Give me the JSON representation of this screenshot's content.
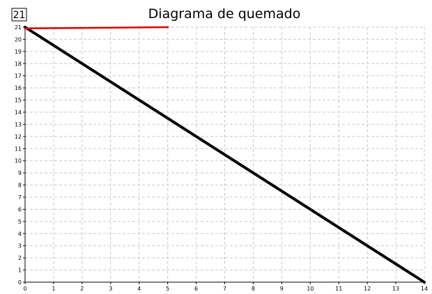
{
  "chart_data": {
    "type": "line",
    "title": "Diagrama de quemado",
    "badge": "21",
    "xlabel": "",
    "ylabel": "",
    "xlim": [
      0,
      14
    ],
    "ylim": [
      0,
      21
    ],
    "x_ticks": [
      "0",
      "1",
      "2",
      "3",
      "4",
      "5",
      "6",
      "7",
      "8",
      "9",
      "10",
      "11",
      "12",
      "13",
      "14"
    ],
    "y_ticks": [
      "0",
      "1",
      "2",
      "3",
      "4",
      "5",
      "6",
      "7",
      "8",
      "9",
      "10",
      "11",
      "12",
      "13",
      "14",
      "15",
      "16",
      "17",
      "18",
      "19",
      "20",
      "21"
    ],
    "grid": true,
    "legend": "none",
    "series": [
      {
        "color": "#000000",
        "x": [
          0,
          14
        ],
        "y": [
          21,
          0
        ]
      },
      {
        "color": "#dd0000",
        "x": [
          0,
          5
        ],
        "y": [
          20.9,
          21
        ]
      }
    ]
  }
}
